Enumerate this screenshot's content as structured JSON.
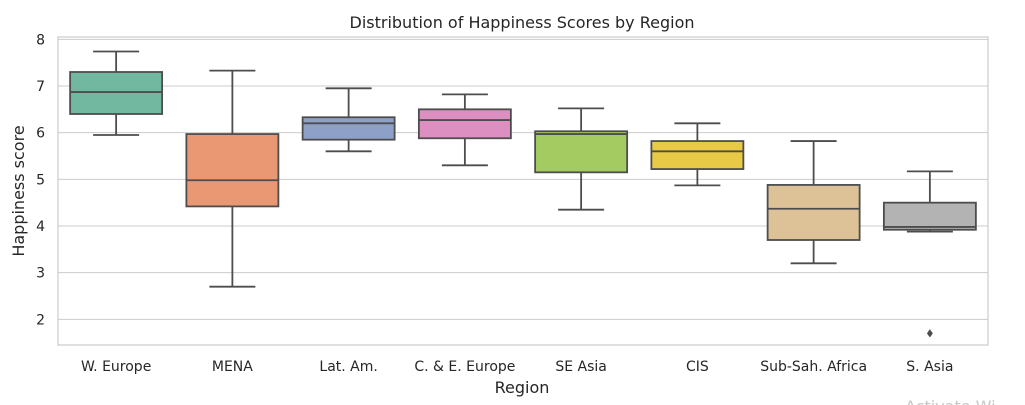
{
  "chart_data": {
    "type": "box",
    "title": "Distribution of Happiness Scores by Region",
    "xlabel": "Region",
    "ylabel": "Happiness score",
    "ylim": [
      1.45,
      8.05
    ],
    "yticks": [
      2,
      3,
      4,
      5,
      6,
      7,
      8
    ],
    "grid": true,
    "categories": [
      "W. Europe",
      "MENA",
      "Lat. Am.",
      "C. & E. Europe",
      "SE Asia",
      "CIS",
      "Sub-Sah. Africa",
      "S. Asia"
    ],
    "colors": [
      "#72b79f",
      "#ea9774",
      "#8fa0c8",
      "#dc8fc0",
      "#a4cb61",
      "#e8ca46",
      "#ddc298",
      "#b3b3b3"
    ],
    "boxes": [
      {
        "category": "W. Europe",
        "whisker_low": 5.95,
        "q1": 6.4,
        "median": 6.87,
        "q3": 7.3,
        "whisker_high": 7.74,
        "outliers": []
      },
      {
        "category": "MENA",
        "whisker_low": 2.7,
        "q1": 4.42,
        "median": 4.98,
        "q3": 5.97,
        "whisker_high": 7.33,
        "outliers": []
      },
      {
        "category": "Lat. Am.",
        "whisker_low": 5.6,
        "q1": 5.85,
        "median": 6.2,
        "q3": 6.33,
        "whisker_high": 6.95,
        "outliers": []
      },
      {
        "category": "C. & E. Europe",
        "whisker_low": 5.3,
        "q1": 5.88,
        "median": 6.27,
        "q3": 6.5,
        "whisker_high": 6.82,
        "outliers": []
      },
      {
        "category": "SE Asia",
        "whisker_low": 4.35,
        "q1": 5.15,
        "median": 5.97,
        "q3": 6.03,
        "whisker_high": 6.52,
        "outliers": []
      },
      {
        "category": "CIS",
        "whisker_low": 4.87,
        "q1": 5.22,
        "median": 5.6,
        "q3": 5.82,
        "whisker_high": 6.2,
        "outliers": []
      },
      {
        "category": "Sub-Sah. Africa",
        "whisker_low": 3.2,
        "q1": 3.7,
        "median": 4.37,
        "q3": 4.88,
        "whisker_high": 5.82,
        "outliers": []
      },
      {
        "category": "S. Asia",
        "whisker_low": 3.88,
        "q1": 3.92,
        "median": 3.98,
        "q3": 4.5,
        "whisker_high": 5.17,
        "outliers": [
          1.7
        ]
      }
    ]
  },
  "watermark": {
    "text": "Activate Wi"
  }
}
